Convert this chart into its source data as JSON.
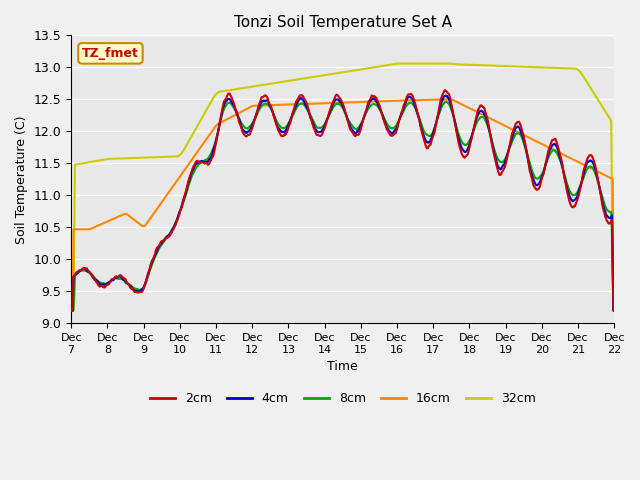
{
  "title": "Tonzi Soil Temperature Set A",
  "xlabel": "Time",
  "ylabel": "Soil Temperature (C)",
  "ylim": [
    9.0,
    13.5
  ],
  "yticks": [
    9.0,
    9.5,
    10.0,
    10.5,
    11.0,
    11.5,
    12.0,
    12.5,
    13.0,
    13.5
  ],
  "x_labels": [
    "Dec 7",
    "Dec 8",
    "Dec 9",
    "Dec 10",
    "Dec 11",
    "Dec 12",
    "Dec 13",
    "Dec 14",
    "Dec 15",
    "Dec 16",
    "Dec 17",
    "Dec 18",
    "Dec 19",
    "Dec 20",
    "Dec 21",
    "Dec 22"
  ],
  "annotation_text": "TZ_fmet",
  "annotation_bg": "#ffffcc",
  "annotation_border": "#cc8800",
  "colors": {
    "2cm": "#cc0000",
    "4cm": "#0000cc",
    "8cm": "#00aa00",
    "16cm": "#ff8800",
    "32cm": "#cccc00"
  },
  "line_widths": {
    "2cm": 1.5,
    "4cm": 1.5,
    "8cm": 1.5,
    "16cm": 1.5,
    "32cm": 1.5
  },
  "background_color": "#f0f0f0",
  "plot_bg": "#e8e8e8",
  "grid_color": "#ffffff"
}
